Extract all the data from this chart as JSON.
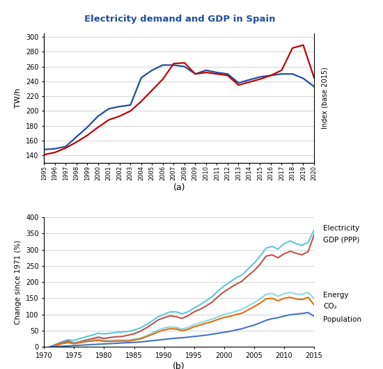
{
  "title_a": "Electricity demand and GDP in Spain",
  "title_color": "#1f4e9e",
  "label_a": "(a)",
  "label_b": "(b)",
  "years_a": [
    1995,
    1996,
    1997,
    1998,
    1999,
    2000,
    2001,
    2002,
    2003,
    2004,
    2005,
    2006,
    2007,
    2008,
    2009,
    2010,
    2011,
    2012,
    2013,
    2014,
    2015,
    2016,
    2017,
    2018,
    2019,
    2020
  ],
  "elec_demand": [
    148,
    149,
    152,
    165,
    178,
    193,
    203,
    206,
    208,
    245,
    255,
    262,
    262,
    260,
    250,
    255,
    252,
    250,
    238,
    242,
    246,
    248,
    250,
    250,
    244,
    233
  ],
  "gdp_index": [
    141,
    144,
    150,
    158,
    167,
    178,
    188,
    193,
    200,
    213,
    228,
    243,
    264,
    265,
    250,
    252,
    250,
    248,
    235,
    239,
    243,
    248,
    255,
    285,
    289,
    245
  ],
  "ylabel_a": "TW/h",
  "ylabel_a2": "Index (base 2015)",
  "ylim_a": [
    130,
    305
  ],
  "yticks_a": [
    140,
    160,
    180,
    200,
    220,
    240,
    260,
    280,
    300
  ],
  "color_elec_a": "#1f4e9e",
  "color_gdp_a": "#c00000",
  "years_b": [
    1971,
    1972,
    1973,
    1974,
    1975,
    1976,
    1977,
    1978,
    1979,
    1980,
    1981,
    1982,
    1983,
    1984,
    1985,
    1986,
    1987,
    1988,
    1989,
    1990,
    1991,
    1992,
    1993,
    1994,
    1995,
    1996,
    1997,
    1998,
    1999,
    2000,
    2001,
    2002,
    2003,
    2004,
    2005,
    2006,
    2007,
    2008,
    2009,
    2010,
    2011,
    2012,
    2013,
    2014,
    2015
  ],
  "elec_b": [
    0,
    8,
    16,
    22,
    20,
    26,
    31,
    36,
    42,
    40,
    42,
    45,
    46,
    48,
    52,
    58,
    68,
    80,
    93,
    100,
    108,
    108,
    102,
    108,
    120,
    130,
    142,
    155,
    172,
    188,
    200,
    213,
    222,
    240,
    258,
    280,
    305,
    310,
    302,
    318,
    327,
    318,
    314,
    322,
    360
  ],
  "gdp_ppp_b": [
    0,
    7,
    13,
    18,
    12,
    16,
    21,
    25,
    30,
    26,
    29,
    31,
    32,
    36,
    40,
    48,
    58,
    70,
    83,
    90,
    96,
    93,
    88,
    96,
    108,
    116,
    126,
    138,
    155,
    170,
    182,
    193,
    203,
    220,
    235,
    255,
    280,
    284,
    275,
    287,
    295,
    289,
    284,
    294,
    345
  ],
  "energy_b": [
    0,
    5,
    11,
    14,
    12,
    15,
    18,
    21,
    24,
    20,
    20,
    21,
    21,
    21,
    24,
    27,
    34,
    43,
    52,
    58,
    62,
    60,
    55,
    60,
    68,
    74,
    80,
    86,
    93,
    100,
    104,
    110,
    116,
    126,
    136,
    148,
    162,
    165,
    156,
    164,
    168,
    163,
    162,
    168,
    150
  ],
  "co2_b": [
    0,
    5,
    10,
    13,
    10,
    13,
    16,
    18,
    20,
    17,
    17,
    18,
    18,
    18,
    21,
    24,
    31,
    38,
    46,
    52,
    56,
    55,
    50,
    54,
    62,
    67,
    73,
    78,
    85,
    91,
    94,
    100,
    104,
    114,
    124,
    135,
    148,
    150,
    142,
    150,
    153,
    148,
    146,
    153,
    130
  ],
  "pop_b": [
    0,
    1,
    2,
    3,
    4,
    5,
    6,
    7,
    8,
    9,
    10,
    11,
    12,
    13,
    14,
    15,
    17,
    19,
    21,
    23,
    25,
    27,
    28,
    30,
    32,
    34,
    36,
    39,
    42,
    45,
    48,
    52,
    56,
    62,
    67,
    74,
    82,
    87,
    90,
    95,
    99,
    101,
    103,
    106,
    95
  ],
  "ylabel_b": "Change since 1971 (%)",
  "ylim_b": [
    0,
    400
  ],
  "yticks_b": [
    0,
    50,
    100,
    150,
    200,
    250,
    300,
    350,
    400
  ],
  "color_elec_b": "#4bacc6",
  "color_gdp_b": "#c0504d",
  "color_energy_b": "#4bacc6",
  "color_co2_b": "#f79646",
  "color_pop_b": "#4472c4",
  "legend_elec_b": "Electricity",
  "legend_gdp_b": "GDP (PPP)",
  "legend_energy_b": "Energy",
  "legend_co2_b": "CO₂",
  "legend_pop_b": "Population",
  "elec_b_color": "#5bc8d4",
  "gdp_b_color": "#c0504d",
  "energy_b_color": "#5bc8d4",
  "co2_b_color": "#e36c09",
  "pop_b_color": "#4472c4"
}
